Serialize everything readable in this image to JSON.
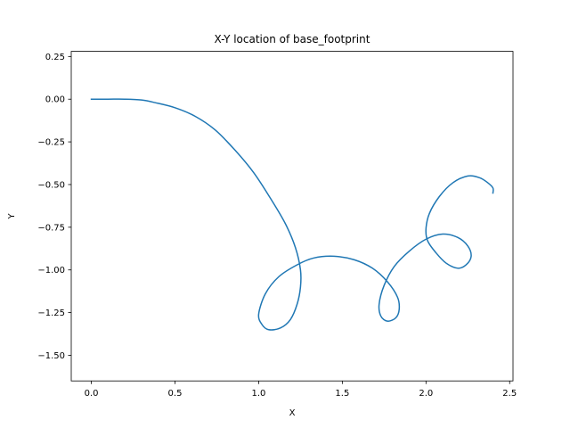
{
  "chart_data": {
    "type": "line",
    "title": "X-Y location of base_footprint",
    "xlabel": "X",
    "ylabel": "Y",
    "xlim": [
      -0.12,
      2.52
    ],
    "ylim": [
      -1.65,
      0.28
    ],
    "xticks": [
      0.0,
      0.5,
      1.0,
      1.5,
      2.0,
      2.5
    ],
    "xtick_labels": [
      "0.0",
      "0.5",
      "1.0",
      "1.5",
      "2.0",
      "2.5"
    ],
    "yticks": [
      0.25,
      0.0,
      -0.25,
      -0.5,
      -0.75,
      -1.0,
      -1.25,
      -1.5
    ],
    "ytick_labels": [
      "0.25",
      "0.00",
      "−0.25",
      "−0.50",
      "−0.75",
      "−1.00",
      "−1.25",
      "−1.50"
    ],
    "grid": false,
    "series": [
      {
        "color": "#1f77b4",
        "x": [
          0.0,
          0.1,
          0.2,
          0.3,
          0.38,
          0.5,
          0.62,
          0.74,
          0.86,
          0.97,
          1.07,
          1.16,
          1.22,
          1.25,
          1.25,
          1.23,
          1.19,
          1.13,
          1.06,
          1.02,
          1.0,
          1.04,
          1.12,
          1.23,
          1.33,
          1.45,
          1.57,
          1.68,
          1.77,
          1.83,
          1.84,
          1.82,
          1.77,
          1.73,
          1.72,
          1.75,
          1.81,
          1.9,
          2.0,
          2.1,
          2.19,
          2.25,
          2.27,
          2.24,
          2.19,
          2.12,
          2.06,
          2.01,
          2.0,
          2.02,
          2.08,
          2.16,
          2.25,
          2.32,
          2.37,
          2.4,
          2.4
        ],
        "y": [
          0.0,
          0.0,
          0.0,
          -0.005,
          -0.02,
          -0.05,
          -0.1,
          -0.18,
          -0.3,
          -0.43,
          -0.58,
          -0.73,
          -0.87,
          -1.0,
          -1.1,
          -1.2,
          -1.29,
          -1.34,
          -1.35,
          -1.32,
          -1.26,
          -1.14,
          -1.04,
          -0.97,
          -0.93,
          -0.92,
          -0.94,
          -0.99,
          -1.07,
          -1.16,
          -1.23,
          -1.28,
          -1.3,
          -1.27,
          -1.2,
          -1.09,
          -0.98,
          -0.89,
          -0.82,
          -0.79,
          -0.81,
          -0.86,
          -0.92,
          -0.97,
          -0.99,
          -0.96,
          -0.9,
          -0.83,
          -0.76,
          -0.67,
          -0.57,
          -0.49,
          -0.45,
          -0.46,
          -0.49,
          -0.52,
          -0.55
        ]
      }
    ]
  }
}
